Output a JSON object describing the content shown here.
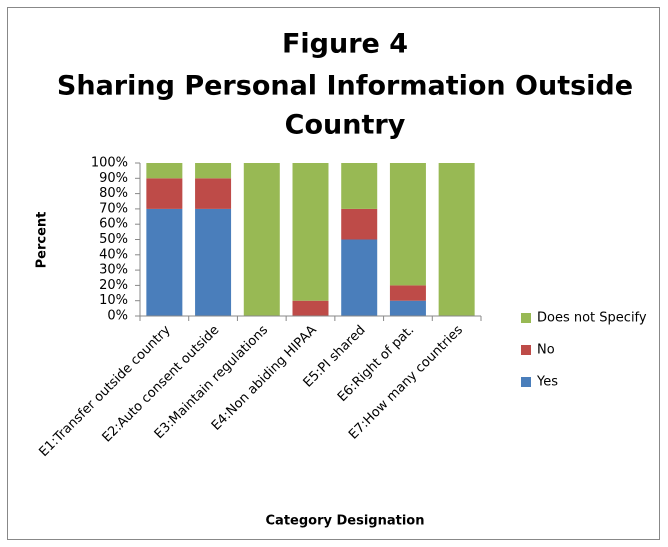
{
  "chart_data": {
    "type": "stacked_bar",
    "title": [
      "Figure 4",
      "Sharing Personal  Information Outside",
      "Country"
    ],
    "y_label": "Percent",
    "x_label": "Category Designation",
    "categories": [
      "E1:Transfer outside country",
      "E2:Auto consent outside",
      "E3:Maintain regulations",
      "E4:Non abiding HIPAA",
      "E5:PI shared",
      "E6:Right of pat.",
      "E7:How many countries"
    ],
    "series": [
      {
        "name": "Yes",
        "color": "#4a7ebb",
        "values": [
          70,
          70,
          0,
          0,
          50,
          10,
          0
        ]
      },
      {
        "name": "No",
        "color": "#be4b48",
        "values": [
          20,
          20,
          0,
          10,
          20,
          10,
          0
        ]
      },
      {
        "name": "Does not Specify",
        "color": "#98b954",
        "values": [
          10,
          10,
          100,
          90,
          30,
          80,
          100
        ]
      }
    ],
    "ylim": [
      0,
      100
    ],
    "yticks": [
      {
        "value": 0,
        "label": "0%"
      },
      {
        "value": 10,
        "label": "10%"
      },
      {
        "value": 20,
        "label": "20%"
      },
      {
        "value": 30,
        "label": "30%"
      },
      {
        "value": 40,
        "label": "40%"
      },
      {
        "value": 50,
        "label": "50%"
      },
      {
        "value": 60,
        "label": "60%"
      },
      {
        "value": 70,
        "label": "70%"
      },
      {
        "value": 80,
        "label": "80%"
      },
      {
        "value": 90,
        "label": "90%"
      },
      {
        "value": 100,
        "label": "100%"
      }
    ],
    "grid": false,
    "legend": "right"
  }
}
